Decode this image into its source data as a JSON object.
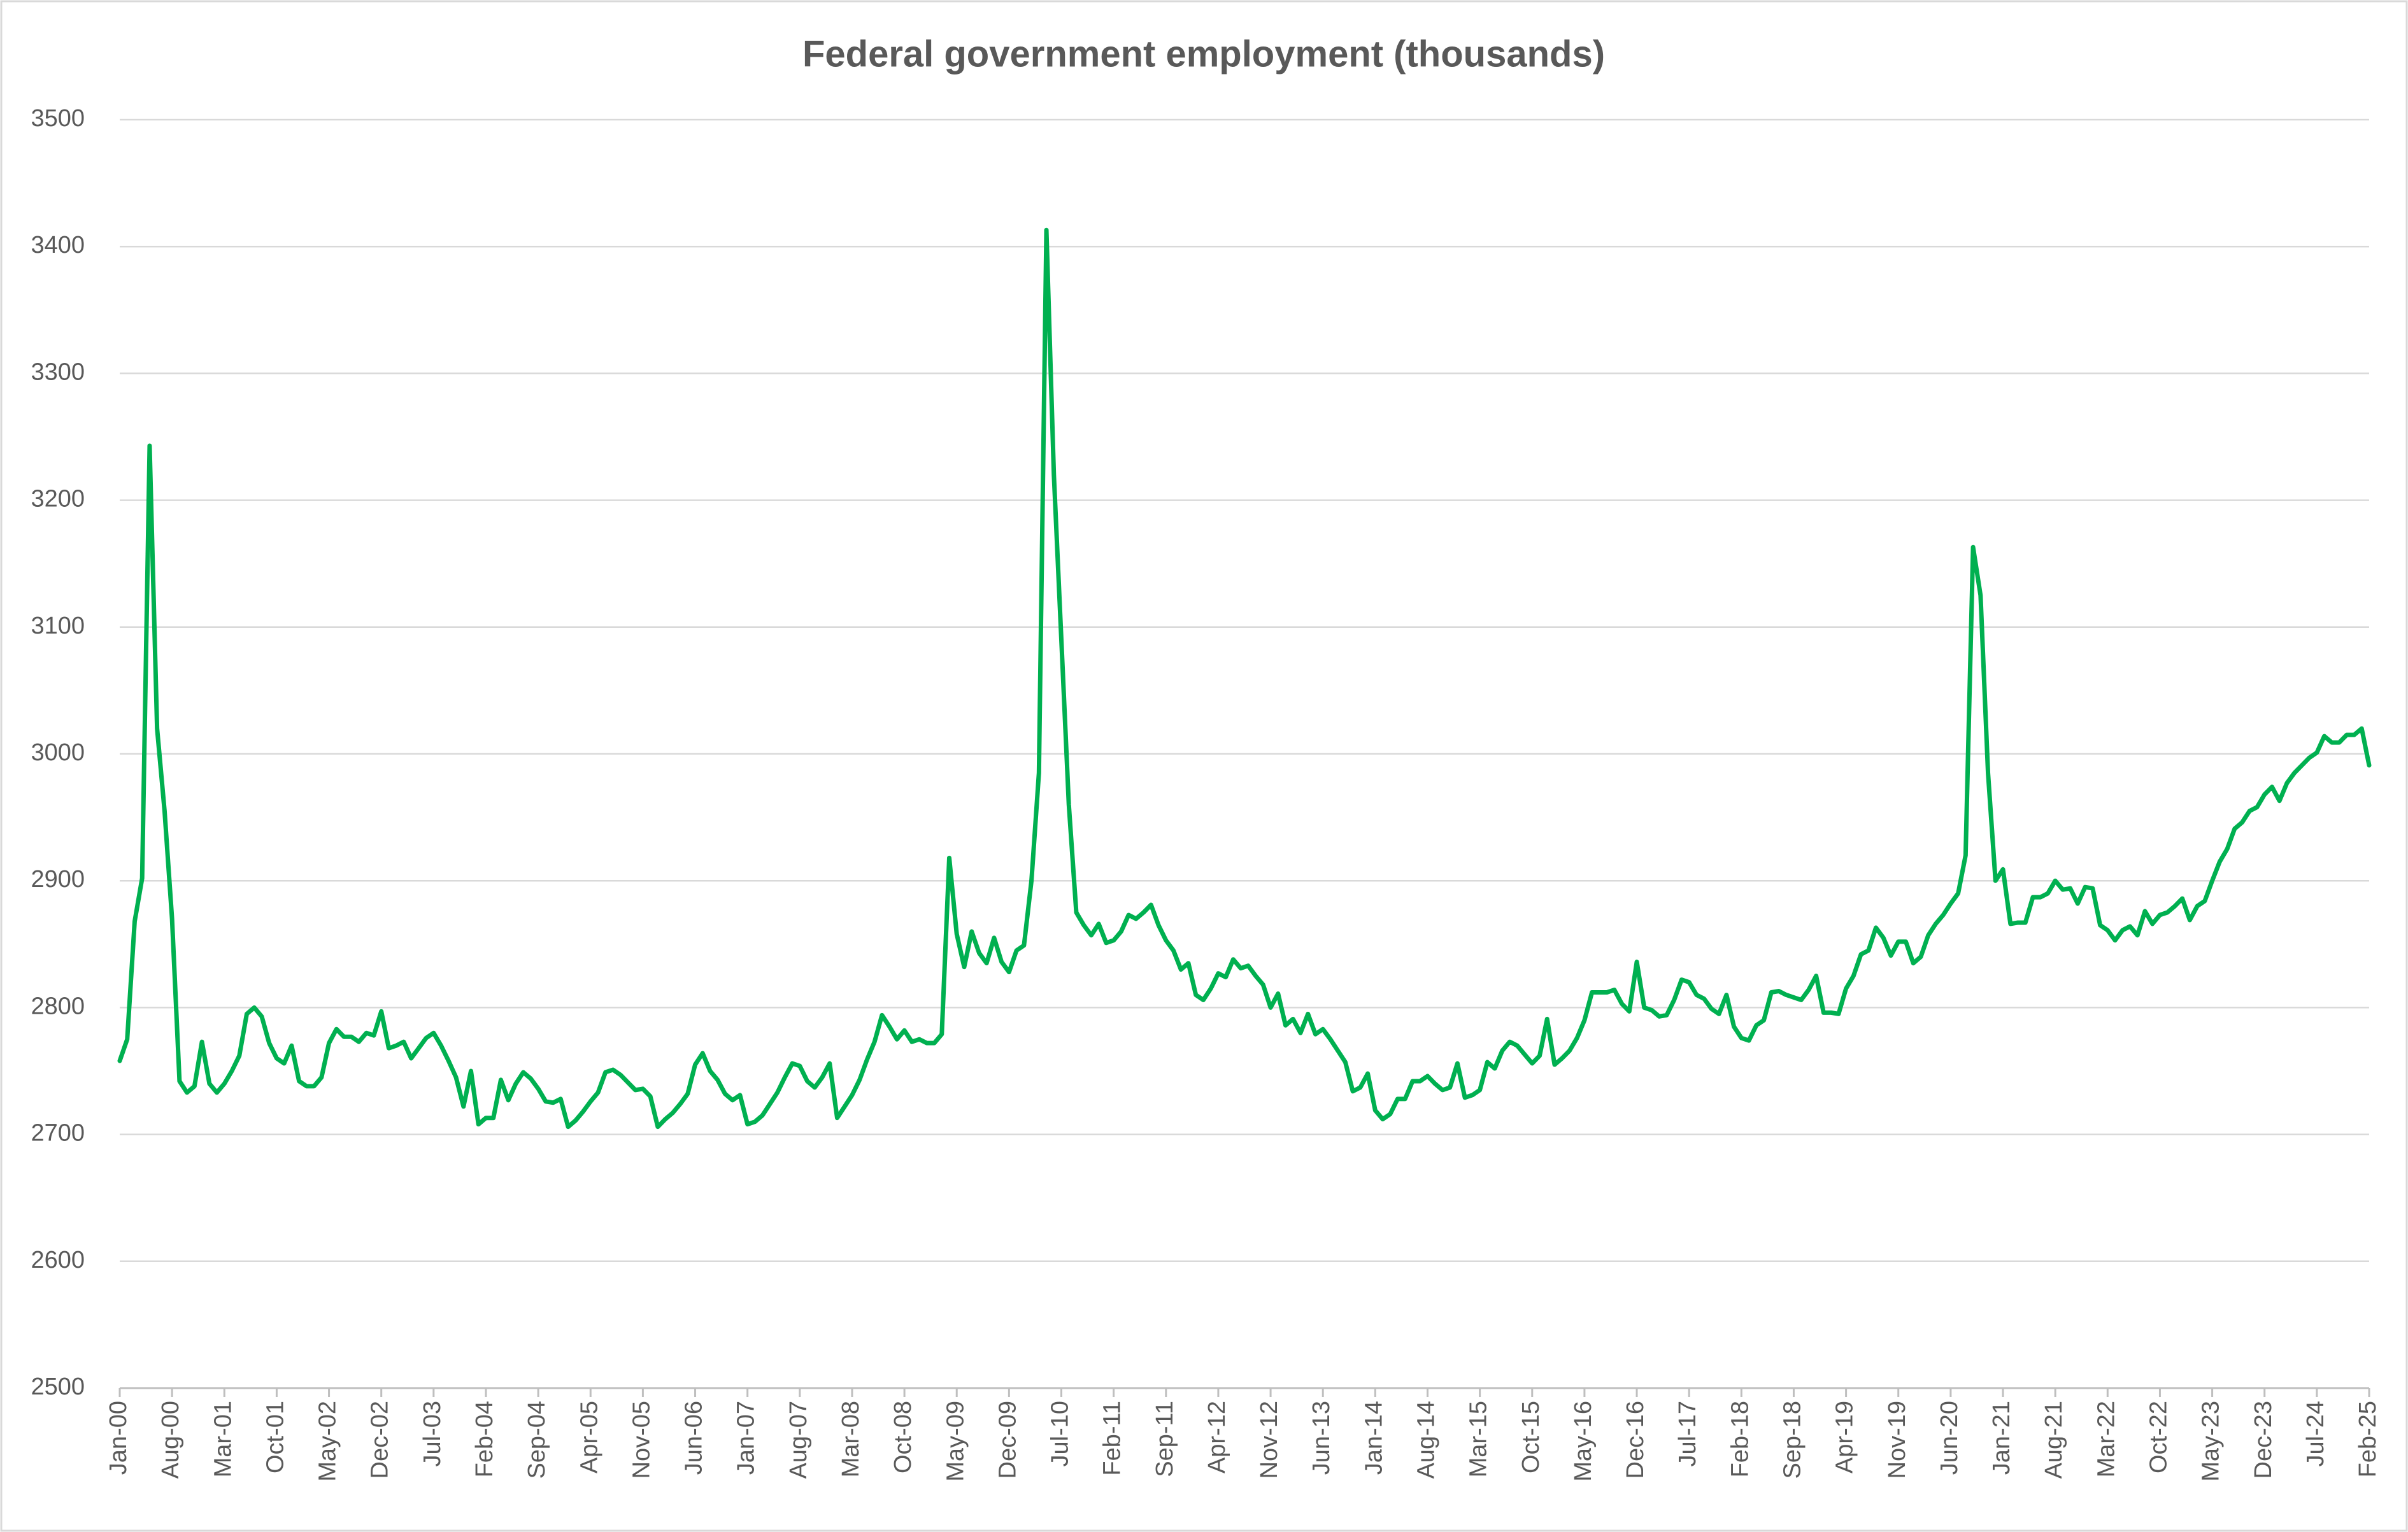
{
  "chart_data": {
    "type": "line",
    "title": "Federal government employment (thousands)",
    "color": "#00b050",
    "grid": true,
    "ylim": [
      2500,
      3500
    ],
    "yticks": [
      2500,
      2600,
      2700,
      2800,
      2900,
      3000,
      3100,
      3200,
      3300,
      3400,
      3500
    ],
    "categories": [
      "Jan-00",
      null,
      null,
      null,
      null,
      null,
      null,
      "Aug-00",
      null,
      null,
      null,
      null,
      null,
      null,
      "Mar-01",
      null,
      null,
      null,
      null,
      null,
      null,
      "Oct-01",
      null,
      null,
      null,
      null,
      null,
      null,
      "May-02",
      null,
      null,
      null,
      null,
      null,
      null,
      "Dec-02",
      null,
      null,
      null,
      null,
      null,
      null,
      "Jul-03",
      null,
      null,
      null,
      null,
      null,
      null,
      "Feb-04",
      null,
      null,
      null,
      null,
      null,
      null,
      "Sep-04",
      null,
      null,
      null,
      null,
      null,
      null,
      "Apr-05",
      null,
      null,
      null,
      null,
      null,
      null,
      "Nov-05",
      null,
      null,
      null,
      null,
      null,
      null,
      "Jun-06",
      null,
      null,
      null,
      null,
      null,
      null,
      "Jan-07",
      null,
      null,
      null,
      null,
      null,
      null,
      "Aug-07",
      null,
      null,
      null,
      null,
      null,
      null,
      "Mar-08",
      null,
      null,
      null,
      null,
      null,
      null,
      "Oct-08",
      null,
      null,
      null,
      null,
      null,
      null,
      "May-09",
      null,
      null,
      null,
      null,
      null,
      null,
      "Dec-09",
      null,
      null,
      null,
      null,
      null,
      null,
      "Jul-10",
      null,
      null,
      null,
      null,
      null,
      null,
      "Feb-11",
      null,
      null,
      null,
      null,
      null,
      null,
      "Sep-11",
      null,
      null,
      null,
      null,
      null,
      null,
      "Apr-12",
      null,
      null,
      null,
      null,
      null,
      null,
      "Nov-12",
      null,
      null,
      null,
      null,
      null,
      null,
      "Jun-13",
      null,
      null,
      null,
      null,
      null,
      null,
      "Jan-14",
      null,
      null,
      null,
      null,
      null,
      null,
      "Aug-14",
      null,
      null,
      null,
      null,
      null,
      null,
      "Mar-15",
      null,
      null,
      null,
      null,
      null,
      null,
      "Oct-15",
      null,
      null,
      null,
      null,
      null,
      null,
      "May-16",
      null,
      null,
      null,
      null,
      null,
      null,
      "Dec-16",
      null,
      null,
      null,
      null,
      null,
      null,
      "Jul-17",
      null,
      null,
      null,
      null,
      null,
      null,
      "Feb-18",
      null,
      null,
      null,
      null,
      null,
      null,
      "Sep-18",
      null,
      null,
      null,
      null,
      null,
      null,
      "Apr-19",
      null,
      null,
      null,
      null,
      null,
      null,
      "Nov-19",
      null,
      null,
      null,
      null,
      null,
      null,
      "Jun-20",
      null,
      null,
      null,
      null,
      null,
      null,
      "Jan-21",
      null,
      null,
      null,
      null,
      null,
      null,
      "Aug-21",
      null,
      null,
      null,
      null,
      null,
      null,
      "Mar-22",
      null,
      null,
      null,
      null,
      null,
      null,
      "Oct-22",
      null,
      null,
      null,
      null,
      null,
      null,
      "May-23",
      null,
      null,
      null,
      null,
      null,
      null,
      "Dec-23",
      null,
      null,
      null,
      null,
      null,
      null,
      "Jul-24",
      null,
      null,
      null,
      null,
      null,
      null,
      "Feb-25"
    ],
    "values": [
      2758,
      2775,
      2868,
      2902,
      3243,
      3020,
      2955,
      2870,
      2742,
      2733,
      2738,
      2773,
      2740,
      2733,
      2740,
      2750,
      2762,
      2795,
      2800,
      2793,
      2772,
      2760,
      2756,
      2770,
      2742,
      2738,
      2738,
      2745,
      2772,
      2783,
      2777,
      2777,
      2773,
      2780,
      2778,
      2797,
      2768,
      2770,
      2773,
      2760,
      2768,
      2776,
      2780,
      2770,
      2758,
      2745,
      2722,
      2750,
      2708,
      2713,
      2713,
      2743,
      2727,
      2740,
      2749,
      2744,
      2736,
      2726,
      2725,
      2728,
      2706,
      2711,
      2718,
      2726,
      2733,
      2749,
      2751,
      2747,
      2741,
      2735,
      2736,
      2730,
      2706,
      2712,
      2717,
      2724,
      2732,
      2755,
      2764,
      2750,
      2743,
      2732,
      2727,
      2731,
      2708,
      2710,
      2715,
      2724,
      2733,
      2745,
      2756,
      2754,
      2742,
      2737,
      2745,
      2756,
      2713,
      2722,
      2731,
      2743,
      2759,
      2773,
      2794,
      2785,
      2775,
      2782,
      2773,
      2775,
      2772,
      2772,
      2779,
      2918,
      2858,
      2832,
      2860,
      2843,
      2835,
      2855,
      2836,
      2828,
      2845,
      2849,
      2900,
      2985,
      3413,
      3220,
      3090,
      2960,
      2875,
      2865,
      2857,
      2866,
      2851,
      2853,
      2860,
      2873,
      2870,
      2875,
      2881,
      2865,
      2853,
      2845,
      2830,
      2835,
      2810,
      2806,
      2815,
      2827,
      2824,
      2838,
      2831,
      2833,
      2825,
      2818,
      2800,
      2811,
      2786,
      2791,
      2780,
      2795,
      2779,
      2783,
      2775,
      2766,
      2757,
      2734,
      2737,
      2748,
      2719,
      2712,
      2716,
      2728,
      2728,
      2742,
      2742,
      2746,
      2740,
      2735,
      2737,
      2756,
      2729,
      2731,
      2735,
      2757,
      2752,
      2766,
      2773,
      2770,
      2763,
      2756,
      2762,
      2791,
      2755,
      2760,
      2766,
      2776,
      2790,
      2812,
      2812,
      2812,
      2814,
      2803,
      2797,
      2836,
      2800,
      2798,
      2793,
      2794,
      2806,
      2822,
      2820,
      2810,
      2807,
      2799,
      2795,
      2810,
      2785,
      2776,
      2774,
      2786,
      2790,
      2812,
      2813,
      2810,
      2808,
      2806,
      2814,
      2825,
      2796,
      2796,
      2795,
      2815,
      2825,
      2842,
      2845,
      2863,
      2855,
      2841,
      2852,
      2852,
      2835,
      2840,
      2857,
      2866,
      2873,
      2882,
      2890,
      2920,
      3163,
      3125,
      2985,
      2900,
      2909,
      2866,
      2867,
      2867,
      2887,
      2887,
      2890,
      2900,
      2893,
      2894,
      2882,
      2895,
      2894,
      2865,
      2861,
      2853,
      2861,
      2864,
      2857,
      2876,
      2866,
      2873,
      2875,
      2880,
      2886,
      2869,
      2880,
      2884,
      2900,
      2915,
      2925,
      2941,
      2946,
      2955,
      2958,
      2968,
      2974,
      2963,
      2977,
      2985,
      2991,
      2997,
      3001,
      3014,
      3009,
      3009,
      3015,
      3015,
      3020,
      2991
    ]
  }
}
